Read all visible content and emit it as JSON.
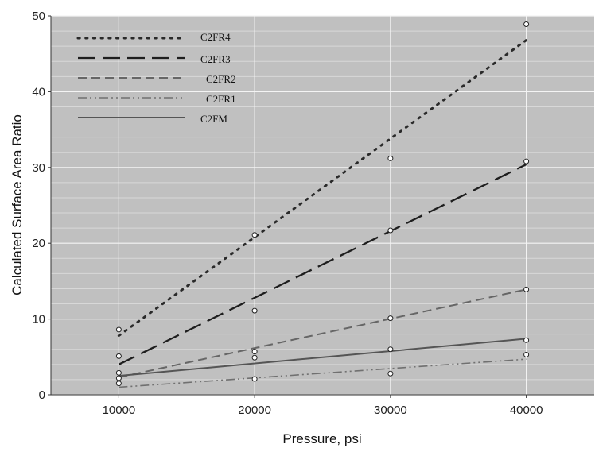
{
  "chart_data": {
    "type": "scatter",
    "xlabel": "Pressure, psi",
    "ylabel": "Calculated Surface Area Ratio",
    "xlim": [
      5000,
      45000
    ],
    "ylim": [
      0,
      50
    ],
    "xticks": [
      "10000",
      "20000",
      "30000",
      "40000"
    ],
    "yticks": [
      "0",
      "10",
      "20",
      "30",
      "40",
      "50"
    ],
    "grid": true,
    "legend_position": "top-left",
    "series": [
      {
        "name": "C2FR4",
        "style": "dotted",
        "color": "#2a2a2a",
        "points": [
          [
            10000,
            8.6
          ],
          [
            20000,
            21.1
          ],
          [
            30000,
            31.2
          ],
          [
            40000,
            48.9
          ]
        ],
        "fit": [
          [
            10000,
            7.8
          ],
          [
            40000,
            46.8
          ]
        ]
      },
      {
        "name": "C2FR3",
        "style": "long-dash",
        "color": "#1e1e1e",
        "points": [
          [
            10000,
            5.1
          ],
          [
            20000,
            11.1
          ],
          [
            30000,
            21.7
          ],
          [
            40000,
            30.8
          ]
        ],
        "fit": [
          [
            10000,
            4.0
          ],
          [
            40000,
            30.4
          ]
        ]
      },
      {
        "name": "C2FR2",
        "style": "dash",
        "color": "#666666",
        "points": [
          [
            10000,
            2.9
          ],
          [
            20000,
            5.7
          ],
          [
            30000,
            10.1
          ],
          [
            40000,
            13.9
          ]
        ],
        "fit": [
          [
            10000,
            2.3
          ],
          [
            40000,
            13.9
          ]
        ]
      },
      {
        "name": "C2FR1",
        "style": "dash-dot-dot",
        "color": "#707070",
        "points": [
          [
            10000,
            1.5
          ],
          [
            20000,
            2.1
          ],
          [
            30000,
            2.8
          ],
          [
            40000,
            5.3
          ]
        ],
        "fit": [
          [
            10000,
            1.0
          ],
          [
            40000,
            4.7
          ]
        ]
      },
      {
        "name": "C2FM",
        "style": "solid",
        "color": "#555555",
        "points": [
          [
            10000,
            2.2
          ],
          [
            20000,
            4.9
          ],
          [
            30000,
            6.0
          ],
          [
            40000,
            7.2
          ]
        ],
        "fit": [
          [
            10000,
            2.5
          ],
          [
            40000,
            7.4
          ]
        ]
      }
    ]
  }
}
